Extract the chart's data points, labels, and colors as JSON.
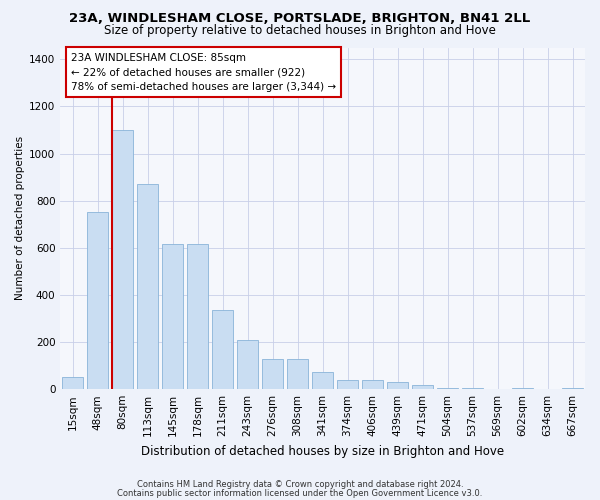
{
  "title": "23A, WINDLESHAM CLOSE, PORTSLADE, BRIGHTON, BN41 2LL",
  "subtitle": "Size of property relative to detached houses in Brighton and Hove",
  "xlabel": "Distribution of detached houses by size in Brighton and Hove",
  "ylabel": "Number of detached properties",
  "footnote1": "Contains HM Land Registry data © Crown copyright and database right 2024.",
  "footnote2": "Contains public sector information licensed under the Open Government Licence v3.0.",
  "bar_labels": [
    "15sqm",
    "48sqm",
    "80sqm",
    "113sqm",
    "145sqm",
    "178sqm",
    "211sqm",
    "243sqm",
    "276sqm",
    "308sqm",
    "341sqm",
    "374sqm",
    "406sqm",
    "439sqm",
    "471sqm",
    "504sqm",
    "537sqm",
    "569sqm",
    "602sqm",
    "634sqm",
    "667sqm"
  ],
  "bar_values": [
    50,
    750,
    1100,
    870,
    615,
    615,
    335,
    210,
    130,
    130,
    75,
    40,
    40,
    30,
    18,
    5,
    5,
    0,
    3,
    0,
    3
  ],
  "bar_color": "#c9ddf2",
  "bar_edge_color": "#8ab4d9",
  "property_line_color": "#cc0000",
  "property_line_bar_index": 2,
  "ylim": [
    0,
    1450
  ],
  "yticks": [
    0,
    200,
    400,
    600,
    800,
    1000,
    1200,
    1400
  ],
  "annotation_line1": "23A WINDLESHAM CLOSE: 85sqm",
  "annotation_line2": "← 22% of detached houses are smaller (922)",
  "annotation_line3": "78% of semi-detached houses are larger (3,344) →",
  "bg_color": "#eef2fa",
  "plot_bg_color": "#f5f7fc",
  "grid_color": "#c8cfe8",
  "title_fontsize": 9.5,
  "subtitle_fontsize": 8.5,
  "ylabel_fontsize": 7.5,
  "xlabel_fontsize": 8.5,
  "tick_fontsize": 7.5,
  "annot_fontsize": 7.5,
  "footnote_fontsize": 6.0
}
